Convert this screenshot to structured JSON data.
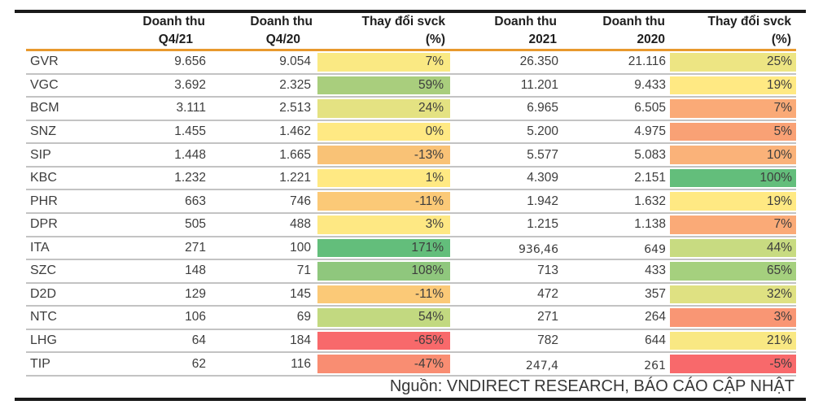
{
  "table": {
    "headers": [
      {
        "line1": "Doanh thu",
        "line2": "Q4/21"
      },
      {
        "line1": "Doanh thu",
        "line2": "Q4/20"
      },
      {
        "line1": "Thay đổi svck",
        "line2": "(%)"
      },
      {
        "line1": "Doanh thu",
        "line2": "2021"
      },
      {
        "line1": "Doanh thu",
        "line2": "2020"
      },
      {
        "line1": "Thay đổi svck",
        "line2": "(%)"
      }
    ],
    "rows": [
      {
        "ticker": "GVR",
        "q4_21": "9.656",
        "q4_20": "9.054",
        "change_q": "7%",
        "change_q_color": "#FAE983",
        "y2021": "26.350",
        "y2020": "21.116",
        "change_y": "25%",
        "change_y_color": "#EDE583",
        "alt_font": false
      },
      {
        "ticker": "VGC",
        "q4_21": "3.692",
        "q4_20": "2.325",
        "change_q": "59%",
        "change_q_color": "#A9CE7D",
        "y2021": "11.201",
        "y2020": "9.433",
        "change_y": "19%",
        "change_y_color": "#FFE983",
        "alt_font": false
      },
      {
        "ticker": "BCM",
        "q4_21": "3.111",
        "q4_20": "2.513",
        "change_q": "24%",
        "change_q_color": "#E4E282",
        "y2021": "6.965",
        "y2020": "6.505",
        "change_y": "7%",
        "change_y_color": "#FAAA77",
        "alt_font": false
      },
      {
        "ticker": "SNZ",
        "q4_21": "1.455",
        "q4_20": "1.462",
        "change_q": "0%",
        "change_q_color": "#FFE983",
        "y2021": "5.200",
        "y2020": "4.975",
        "change_y": "5%",
        "change_y_color": "#F9A175",
        "alt_font": false
      },
      {
        "ticker": "SIP",
        "q4_21": "1.448",
        "q4_20": "1.665",
        "change_q": "-13%",
        "change_q_color": "#F9C276",
        "y2021": "5.577",
        "y2020": "5.083",
        "change_y": "10%",
        "change_y_color": "#FAB279",
        "alt_font": false
      },
      {
        "ticker": "KBC",
        "q4_21": "1.232",
        "q4_20": "1.221",
        "change_q": "1%",
        "change_q_color": "#FFE983",
        "y2021": "4.309",
        "y2020": "2.151",
        "change_y": "100%",
        "change_y_color": "#63BE7B",
        "alt_font": false
      },
      {
        "ticker": "PHR",
        "q4_21": "663",
        "q4_20": "746",
        "change_q": "-11%",
        "change_q_color": "#FBC977",
        "y2021": "1.942",
        "y2020": "1.632",
        "change_y": "19%",
        "change_y_color": "#FFE983",
        "alt_font": false
      },
      {
        "ticker": "DPR",
        "q4_21": "505",
        "q4_20": "488",
        "change_q": "3%",
        "change_q_color": "#FEE883",
        "y2021": "1.215",
        "y2020": "1.138",
        "change_y": "7%",
        "change_y_color": "#FAAA77",
        "alt_font": false
      },
      {
        "ticker": "ITA",
        "q4_21": "271",
        "q4_20": "100",
        "change_q": "171%",
        "change_q_color": "#63BE7B",
        "y2021": "936,46",
        "y2020": "649",
        "change_y": "44%",
        "change_y_color": "#C8DB81",
        "alt_font": true
      },
      {
        "ticker": "SZC",
        "q4_21": "148",
        "q4_20": "71",
        "change_q": "108%",
        "change_q_color": "#8FC77D",
        "y2021": "713",
        "y2020": "433",
        "change_y": "65%",
        "change_y_color": "#A5D07E",
        "alt_font": false
      },
      {
        "ticker": "D2D",
        "q4_21": "129",
        "q4_20": "145",
        "change_q": "-11%",
        "change_q_color": "#FBC977",
        "y2021": "472",
        "y2020": "357",
        "change_y": "32%",
        "change_y_color": "#DFE182",
        "alt_font": false
      },
      {
        "ticker": "NTC",
        "q4_21": "106",
        "q4_20": "69",
        "change_q": "54%",
        "change_q_color": "#C2D980",
        "y2021": "271",
        "y2020": "264",
        "change_y": "3%",
        "change_y_color": "#F99674",
        "alt_font": false
      },
      {
        "ticker": "LHG",
        "q4_21": "64",
        "q4_20": "184",
        "change_q": "-65%",
        "change_q_color": "#F8696B",
        "y2021": "782",
        "y2020": "644",
        "change_y": "21%",
        "change_y_color": "#F9E883",
        "alt_font": false
      },
      {
        "ticker": "TIP",
        "q4_21": "62",
        "q4_20": "116",
        "change_q": "-47%",
        "change_q_color": "#F98D72",
        "y2021": "247,4",
        "y2020": "261",
        "change_y": "-5%",
        "change_y_color": "#F8696B",
        "alt_font": true
      }
    ]
  },
  "footer": {
    "source_text": "Nguồn: VNDIRECT RESEARCH, BÁO CÁO CẬP NHẬT"
  },
  "style": {
    "accent_orange": "#E8992E",
    "top_bottom_border_color": "#1a1a1a",
    "row_separator_color": "#c3c3c3",
    "scale_min_color": "#F8696B",
    "scale_mid_color": "#FFEB84",
    "scale_max_color": "#63BE7B"
  }
}
